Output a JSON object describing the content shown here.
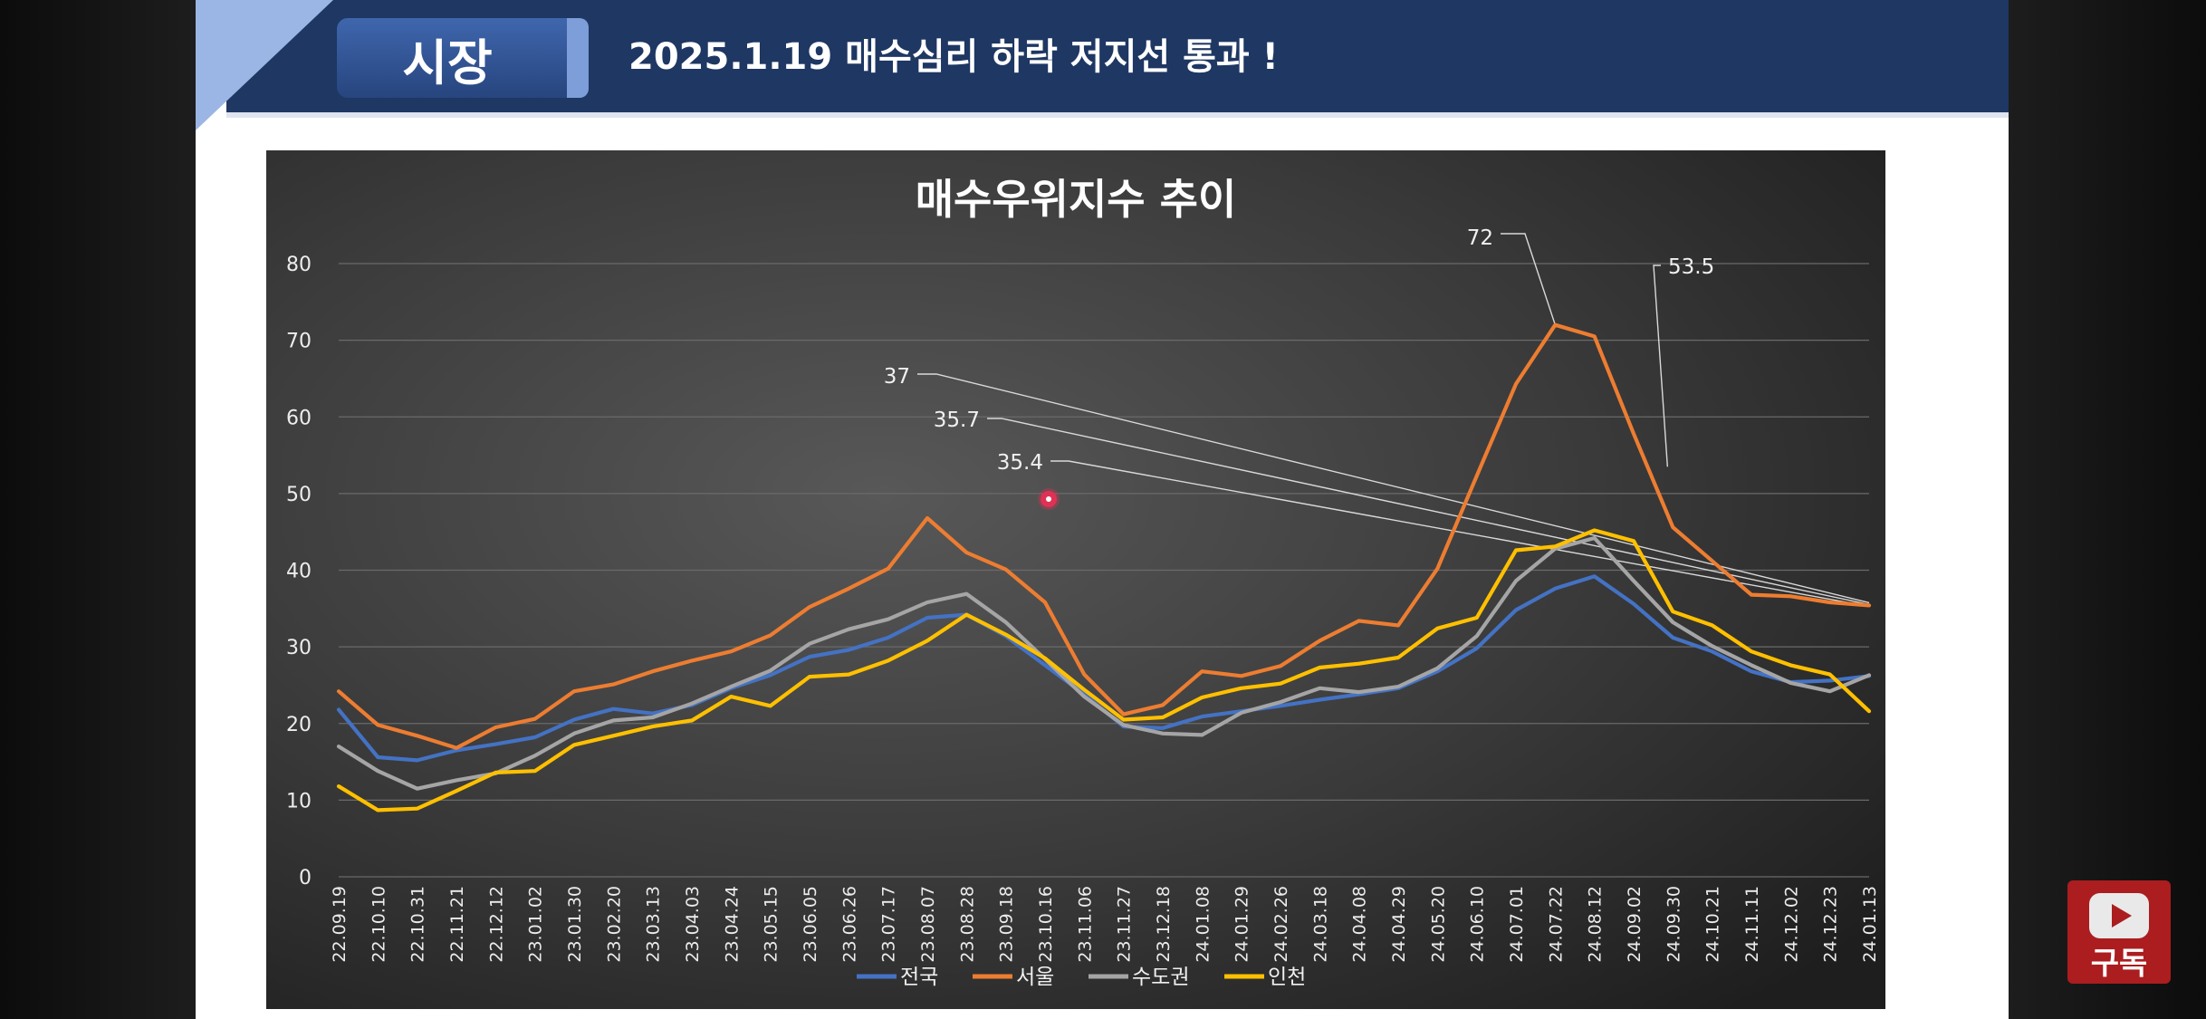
{
  "header": {
    "section_tag": "시장",
    "title": "2025.1.19 매수심리 하락 저지선 통과 !"
  },
  "subscribe": {
    "label": "구독",
    "icon": "youtube-play-icon"
  },
  "colors": {
    "series": [
      "#4472c4",
      "#ed7d31",
      "#a5a5a5",
      "#ffc000"
    ],
    "header": "#1e3763"
  },
  "chart_data": {
    "type": "line",
    "title": "매수우위지수 추이",
    "xlabel": "",
    "ylabel": "",
    "ylim": [
      0,
      80
    ],
    "yticks": [
      "0",
      "10",
      "20",
      "30",
      "40",
      "50",
      "60",
      "70",
      "80"
    ],
    "grid": true,
    "legend_position": "bottom",
    "categories": [
      "22.09.19",
      "22.10.10",
      "22.10.31",
      "22.11.21",
      "22.12.12",
      "23.01.02",
      "23.01.30",
      "23.02.20",
      "23.03.13",
      "23.04.03",
      "23.04.24",
      "23.05.15",
      "23.06.05",
      "23.06.26",
      "23.07.17",
      "23.08.07",
      "23.08.28",
      "23.09.18",
      "23.10.16",
      "23.11.06",
      "23.11.27",
      "23.12.18",
      "24.01.08",
      "24.01.29",
      "24.02.26",
      "24.03.18",
      "24.04.08",
      "24.04.29",
      "24.05.20",
      "24.06.10",
      "24.07.01",
      "24.07.22",
      "24.08.12",
      "24.09.02",
      "24.09.30",
      "24.10.21",
      "24.11.11",
      "24.12.02",
      "24.12.23",
      "24.01.13"
    ],
    "series": [
      {
        "name": "전국",
        "values": [
          21.8,
          15.6,
          15.2,
          16.5,
          17.3,
          18.2,
          20.5,
          21.9,
          21.3,
          22.4,
          24.6,
          26.3,
          28.7,
          29.6,
          31.2,
          33.8,
          34.2,
          31.4,
          27.6,
          23.8,
          19.6,
          19.4,
          20.9,
          21.6,
          22.3,
          23.1,
          23.8,
          24.6,
          26.8,
          29.8,
          34.8,
          37.6,
          39.2,
          35.6,
          31.2,
          29.4,
          26.8,
          25.4,
          25.6,
          26.2
        ]
      },
      {
        "name": "서울",
        "values": [
          24.2,
          19.8,
          18.4,
          16.8,
          19.5,
          20.6,
          24.2,
          25.1,
          26.8,
          28.2,
          29.4,
          31.5,
          35.2,
          37.6,
          40.2,
          46.8,
          42.3,
          40.1,
          35.8,
          26.4,
          21.2,
          22.4,
          26.8,
          26.2,
          27.5,
          30.8,
          33.4,
          32.8,
          40.2,
          52.3,
          64.3,
          72.0,
          70.5,
          57.8,
          45.6,
          41.2,
          36.8,
          36.6,
          35.8,
          35.4
        ]
      },
      {
        "name": "수도권",
        "values": [
          17.0,
          13.8,
          11.5,
          12.6,
          13.5,
          15.8,
          18.7,
          20.4,
          20.8,
          22.6,
          24.8,
          26.9,
          30.4,
          32.3,
          33.6,
          35.8,
          36.9,
          33.2,
          28.4,
          23.5,
          19.8,
          18.7,
          18.5,
          21.4,
          22.8,
          24.6,
          24.1,
          24.8,
          27.2,
          31.4,
          38.6,
          42.8,
          44.2,
          38.6,
          33.2,
          30.1,
          27.6,
          25.3,
          24.2,
          26.3
        ]
      },
      {
        "name": "인천",
        "values": [
          11.8,
          8.7,
          8.9,
          11.2,
          13.6,
          13.8,
          17.2,
          18.4,
          19.6,
          20.4,
          23.5,
          22.3,
          26.1,
          26.4,
          28.2,
          30.8,
          34.2,
          31.6,
          28.5,
          24.4,
          20.5,
          20.8,
          23.4,
          24.6,
          25.2,
          27.3,
          27.8,
          28.6,
          32.4,
          33.8,
          42.6,
          43.1,
          45.2,
          43.8,
          34.6,
          32.8,
          29.4,
          27.6,
          26.4,
          21.6
        ]
      }
    ],
    "annotations": [
      "72",
      "53.5",
      "37",
      "35.7",
      "35.4"
    ]
  }
}
